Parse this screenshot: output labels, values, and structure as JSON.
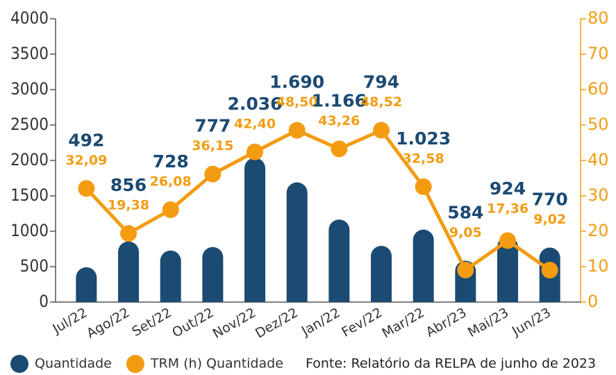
{
  "chart_data": {
    "type": "bar_line",
    "categories": [
      "Jul/22",
      "Ago/22",
      "Set/22",
      "Out/22",
      "Nov/22",
      "Dez/22",
      "Jan/22",
      "Fev/22",
      "Mar/22",
      "Abr/23",
      "Mai/23",
      "Jun/23"
    ],
    "series": [
      {
        "name": "Quantidade",
        "color": "#1b4a72",
        "type": "bar",
        "values": [
          492,
          856,
          728,
          777,
          2036,
          1690,
          1166,
          794,
          1023,
          584,
          924,
          770
        ],
        "value_labels": [
          "492",
          "856",
          "728",
          "777",
          "2.036",
          "1.690",
          "1.166",
          "794",
          "1.023",
          "584",
          "924",
          "770"
        ]
      },
      {
        "name": "TRM (h) Quantidade",
        "color": "#f39c12",
        "type": "line",
        "axis": "y2",
        "values": [
          32.09,
          19.38,
          26.08,
          36.15,
          42.4,
          48.5,
          43.26,
          48.52,
          32.58,
          9.05,
          17.36,
          9.02
        ],
        "value_labels": [
          "32,09",
          "19,38",
          "26,08",
          "36,15",
          "42,40",
          "48,50",
          "43,26",
          "48,52",
          "32,58",
          "9,05",
          "17,36",
          "9,02"
        ]
      }
    ],
    "ylim": [
      0,
      4000
    ],
    "yticks": [
      0,
      500,
      1000,
      1500,
      2000,
      2500,
      3000,
      3500,
      4000
    ],
    "y2lim": [
      0,
      80
    ],
    "y2ticks": [
      0,
      10,
      20,
      30,
      40,
      50,
      60,
      70,
      80
    ],
    "source": "Fonte: Relatório da RELPA de junho de 2023"
  }
}
